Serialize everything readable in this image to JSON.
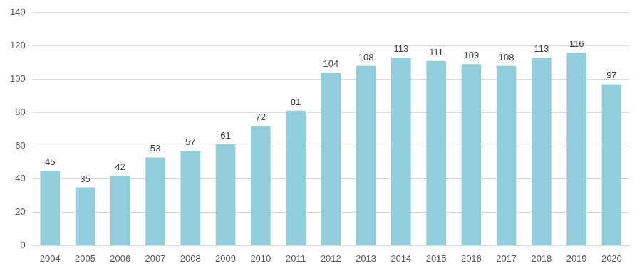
{
  "chart_data": {
    "type": "bar",
    "categories": [
      "2004",
      "2005",
      "2006",
      "2007",
      "2008",
      "2009",
      "2010",
      "2011",
      "2012",
      "2013",
      "2014",
      "2015",
      "2016",
      "2017",
      "2018",
      "2019",
      "2020"
    ],
    "values": [
      45,
      35,
      42,
      53,
      57,
      61,
      72,
      81,
      104,
      108,
      113,
      111,
      109,
      108,
      113,
      116,
      97
    ],
    "color": "#92cddc",
    "ylim": [
      0,
      140
    ],
    "yticks": [
      0,
      20,
      40,
      60,
      80,
      100,
      120,
      140
    ],
    "grid": true,
    "data_labels": true
  }
}
